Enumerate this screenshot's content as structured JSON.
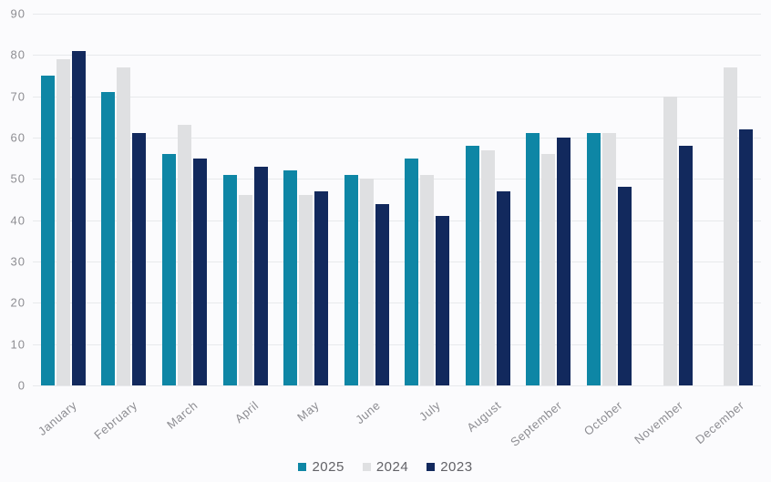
{
  "chart_data": {
    "type": "bar",
    "title": "",
    "categories": [
      "January",
      "February",
      "March",
      "April",
      "May",
      "June",
      "July",
      "August",
      "September",
      "October",
      "November",
      "December"
    ],
    "series": [
      {
        "name": "2025",
        "color": "#0e86a5",
        "values": [
          75,
          71,
          56,
          51,
          52,
          51,
          55,
          58,
          61,
          61,
          null,
          null
        ]
      },
      {
        "name": "2024",
        "color": "#dfe0e2",
        "values": [
          79,
          77,
          63,
          46,
          46,
          50,
          51,
          57,
          56,
          61,
          70,
          77
        ]
      },
      {
        "name": "2023",
        "color": "#12295d",
        "values": [
          81,
          61,
          55,
          53,
          47,
          44,
          41,
          47,
          60,
          48,
          58,
          62
        ]
      }
    ],
    "xlabel": "",
    "ylabel": "",
    "ylim": [
      0,
      90
    ],
    "yticks": [
      0,
      10,
      20,
      30,
      40,
      50,
      60,
      70,
      80,
      90
    ],
    "grid": "horizontal",
    "legend_position": "bottom-center"
  },
  "style": {
    "background": "#fbfbfd",
    "gridline_color": "#e8e9ec",
    "tick_label_color": "#8d8d92",
    "legend_text_color": "#626267"
  }
}
